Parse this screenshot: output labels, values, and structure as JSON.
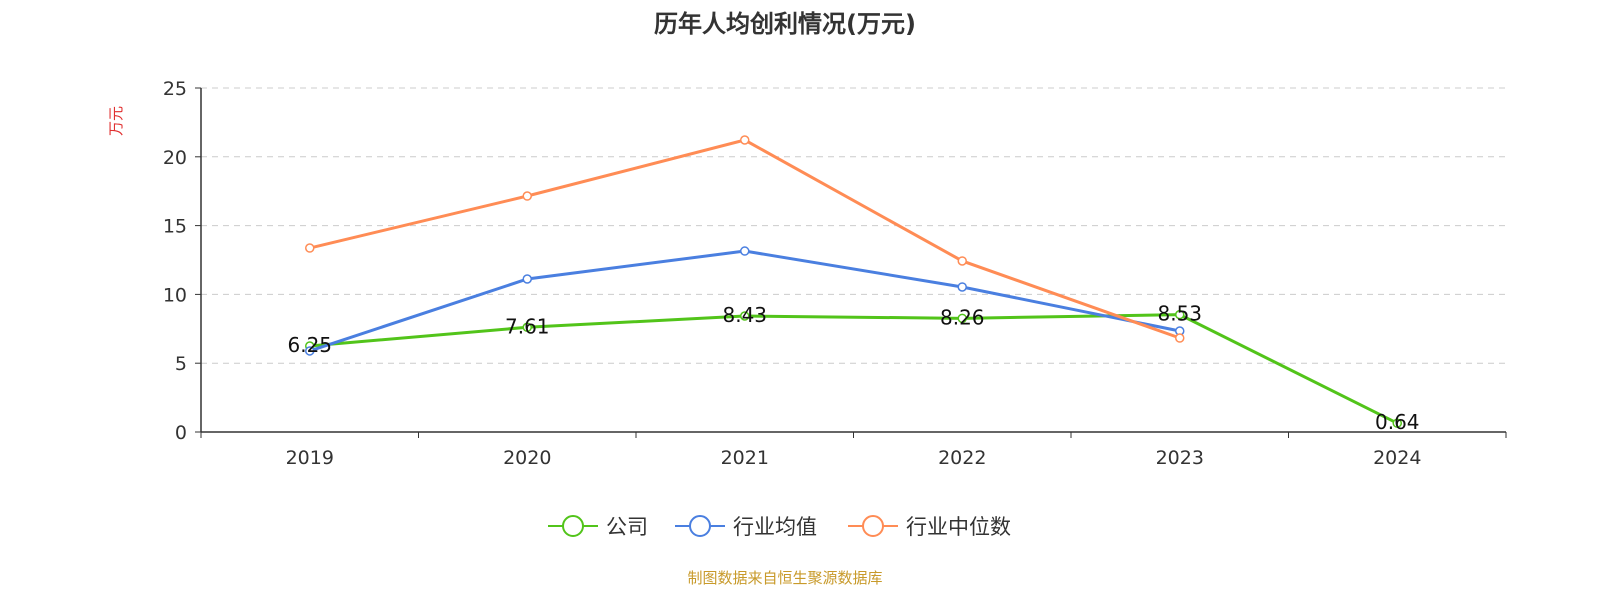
{
  "chart_data": {
    "type": "line",
    "title": "历年人均创利情况(万元)",
    "ylabel": "万元",
    "ylim": [
      0,
      25
    ],
    "yticks": [
      0,
      5,
      10,
      15,
      20,
      25
    ],
    "grid": true,
    "legend_position": "bottom",
    "categories": [
      "2019",
      "2020",
      "2021",
      "2022",
      "2023",
      "2024"
    ],
    "series": [
      {
        "name": "公司",
        "color": "#52c41a",
        "values": [
          6.25,
          7.61,
          8.43,
          8.26,
          8.53,
          0.64
        ],
        "labels": [
          "6.25",
          "7.61",
          "8.43",
          "8.26",
          "8.53",
          "0.64"
        ]
      },
      {
        "name": "行业均值",
        "color": "#4a7fe0",
        "values": [
          5.89,
          11.12,
          13.15,
          10.54,
          7.34,
          null
        ]
      },
      {
        "name": "行业中位数",
        "color": "#ff8c55",
        "values": [
          13.37,
          17.15,
          21.22,
          12.43,
          6.83,
          null
        ]
      }
    ],
    "source": "制图数据来自恒生聚源数据库"
  }
}
